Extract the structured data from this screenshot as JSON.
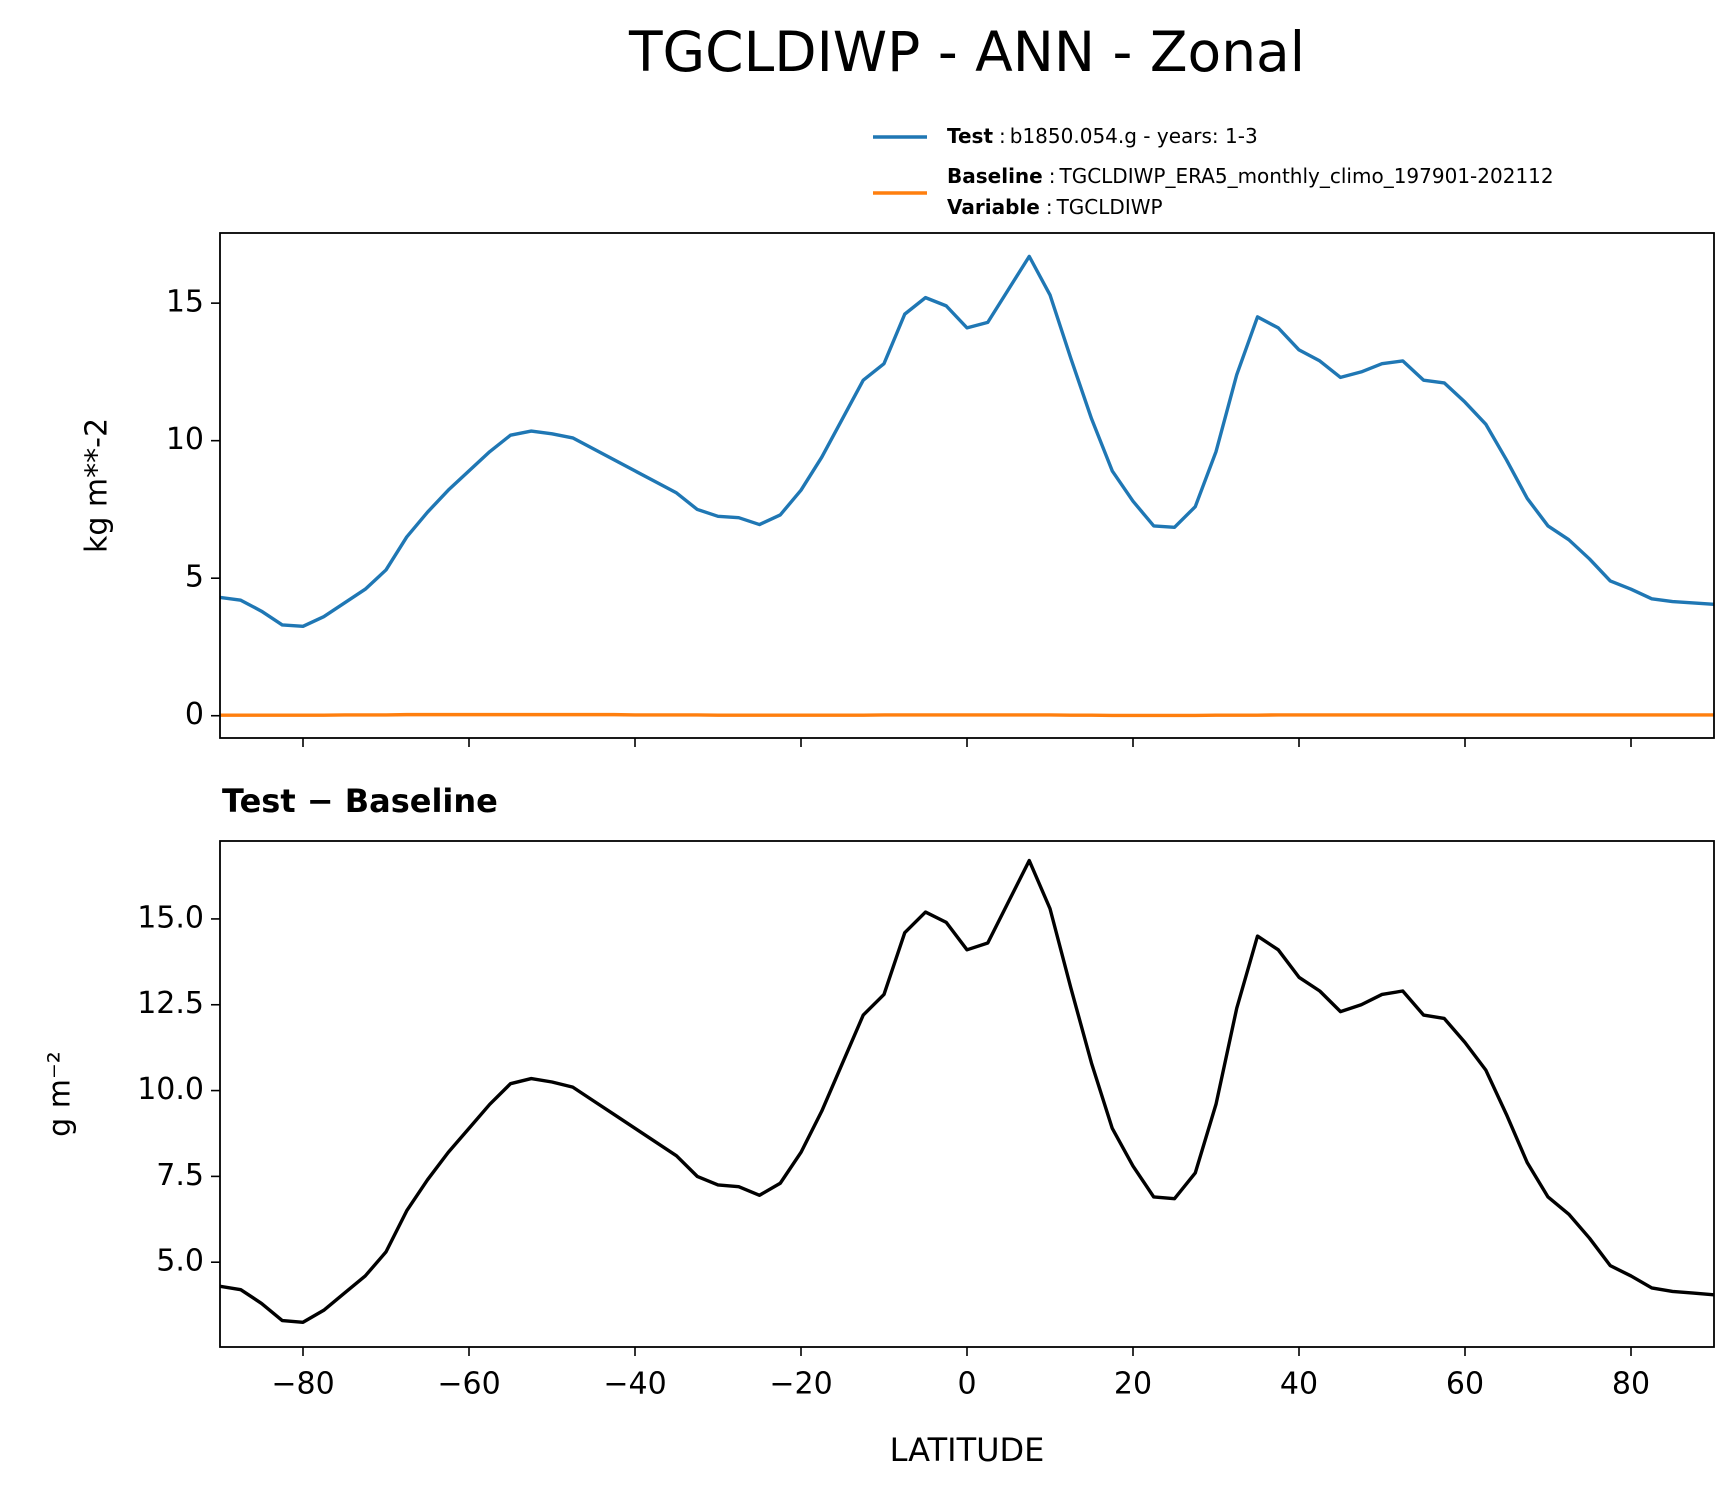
{
  "title": "TGCLDIWP - ANN - Zonal",
  "chart_data": [
    {
      "type": "line",
      "ylabel": "kg m**-2",
      "legend_separator": ":",
      "x": [
        -90,
        -87.5,
        -85,
        -82.5,
        -80,
        -77.5,
        -75,
        -72.5,
        -70,
        -67.5,
        -65,
        -62.5,
        -60,
        -57.5,
        -55,
        -52.5,
        -50,
        -47.5,
        -45,
        -42.5,
        -40,
        -37.5,
        -35,
        -32.5,
        -30,
        -27.5,
        -25,
        -22.5,
        -20,
        -17.5,
        -15,
        -12.5,
        -10,
        -7.5,
        -5,
        -2.5,
        0,
        2.5,
        5,
        7.5,
        10,
        12.5,
        15,
        17.5,
        20,
        22.5,
        25,
        27.5,
        30,
        32.5,
        35,
        37.5,
        40,
        42.5,
        45,
        47.5,
        50,
        52.5,
        55,
        57.5,
        60,
        62.5,
        65,
        67.5,
        70,
        72.5,
        75,
        77.5,
        80,
        82.5,
        85,
        87.5,
        90
      ],
      "series": [
        {
          "name": "Test",
          "description": "b1850.054.g - years: 1-3",
          "color": "#1f77b4",
          "values": [
            4.3,
            4.2,
            3.8,
            3.3,
            3.25,
            3.6,
            4.1,
            4.6,
            5.3,
            6.5,
            7.4,
            8.2,
            8.9,
            9.6,
            10.2,
            10.35,
            10.25,
            10.1,
            9.7,
            9.3,
            8.9,
            8.5,
            8.1,
            7.5,
            7.25,
            7.2,
            6.95,
            7.3,
            8.2,
            9.4,
            10.8,
            12.2,
            12.8,
            14.6,
            15.2,
            14.9,
            14.1,
            14.3,
            15.5,
            16.7,
            15.3,
            13.0,
            10.8,
            8.9,
            7.8,
            6.9,
            6.85,
            7.6,
            9.6,
            12.4,
            14.5,
            14.1,
            13.3,
            12.9,
            12.3,
            12.5,
            12.8,
            12.9,
            12.2,
            12.1,
            11.4,
            10.6,
            9.3,
            7.9,
            6.9,
            6.4,
            5.7,
            4.9,
            4.6,
            4.25,
            4.15,
            4.1,
            4.05
          ]
        },
        {
          "name": "Baseline",
          "description": "TGCLDIWP_ERA5_monthly_climo_197901-202112",
          "color": "#ff7f0e",
          "variable_label": "Variable",
          "variable": "TGCLDIWP",
          "values": [
            0.02,
            0.02,
            0.02,
            0.02,
            0.02,
            0.02,
            0.03,
            0.03,
            0.03,
            0.04,
            0.04,
            0.04,
            0.04,
            0.04,
            0.04,
            0.04,
            0.04,
            0.04,
            0.04,
            0.04,
            0.03,
            0.03,
            0.03,
            0.03,
            0.02,
            0.02,
            0.02,
            0.02,
            0.02,
            0.02,
            0.02,
            0.02,
            0.03,
            0.03,
            0.03,
            0.03,
            0.03,
            0.03,
            0.03,
            0.03,
            0.03,
            0.02,
            0.02,
            0.01,
            0.01,
            0.01,
            0.01,
            0.01,
            0.02,
            0.02,
            0.02,
            0.03,
            0.03,
            0.03,
            0.03,
            0.03,
            0.03,
            0.03,
            0.03,
            0.03,
            0.03,
            0.03,
            0.03,
            0.03,
            0.03,
            0.03,
            0.03,
            0.03,
            0.03,
            0.03,
            0.03,
            0.03,
            0.03
          ]
        }
      ],
      "xlim": [
        -90,
        90
      ],
      "xticks": [
        -80,
        -60,
        -40,
        -20,
        0,
        20,
        40,
        60,
        80
      ],
      "ylim": [
        -0.81,
        17.55
      ],
      "yticks": [
        0,
        5,
        10,
        15
      ]
    },
    {
      "type": "line",
      "title": "Test − Baseline",
      "ylabel": "g m⁻²",
      "xlabel": "LATITUDE",
      "x": [
        -90,
        -87.5,
        -85,
        -82.5,
        -80,
        -77.5,
        -75,
        -72.5,
        -70,
        -67.5,
        -65,
        -62.5,
        -60,
        -57.5,
        -55,
        -52.5,
        -50,
        -47.5,
        -45,
        -42.5,
        -40,
        -37.5,
        -35,
        -32.5,
        -30,
        -27.5,
        -25,
        -22.5,
        -20,
        -17.5,
        -15,
        -12.5,
        -10,
        -7.5,
        -5,
        -2.5,
        0,
        2.5,
        5,
        7.5,
        10,
        12.5,
        15,
        17.5,
        20,
        22.5,
        25,
        27.5,
        30,
        32.5,
        35,
        37.5,
        40,
        42.5,
        45,
        47.5,
        50,
        52.5,
        55,
        57.5,
        60,
        62.5,
        65,
        67.5,
        70,
        72.5,
        75,
        77.5,
        80,
        82.5,
        85,
        87.5,
        90
      ],
      "series": [
        {
          "color": "#000000",
          "values": [
            4.3,
            4.2,
            3.8,
            3.3,
            3.25,
            3.6,
            4.1,
            4.6,
            5.3,
            6.5,
            7.4,
            8.2,
            8.9,
            9.6,
            10.2,
            10.35,
            10.25,
            10.1,
            9.7,
            9.3,
            8.9,
            8.5,
            8.1,
            7.5,
            7.25,
            7.2,
            6.95,
            7.3,
            8.2,
            9.4,
            10.8,
            12.2,
            12.8,
            14.6,
            15.2,
            14.9,
            14.1,
            14.3,
            15.5,
            16.7,
            15.3,
            13.0,
            10.8,
            8.9,
            7.8,
            6.9,
            6.85,
            7.6,
            9.6,
            12.4,
            14.5,
            14.1,
            13.3,
            12.9,
            12.3,
            12.5,
            12.8,
            12.9,
            12.2,
            12.1,
            11.4,
            10.6,
            9.3,
            7.9,
            6.9,
            6.4,
            5.7,
            4.9,
            4.6,
            4.25,
            4.15,
            4.1,
            4.05
          ]
        }
      ],
      "xlim": [
        -90,
        90
      ],
      "xticks": [
        -80,
        -60,
        -40,
        -20,
        0,
        20,
        40,
        60,
        80
      ],
      "ylim": [
        2.53,
        17.27
      ],
      "yticks": [
        {
          "value": 5,
          "label": "5.0"
        },
        7.5,
        {
          "value": 10,
          "label": "10.0"
        },
        12.5,
        {
          "value": 15,
          "label": "15.0"
        }
      ]
    }
  ]
}
